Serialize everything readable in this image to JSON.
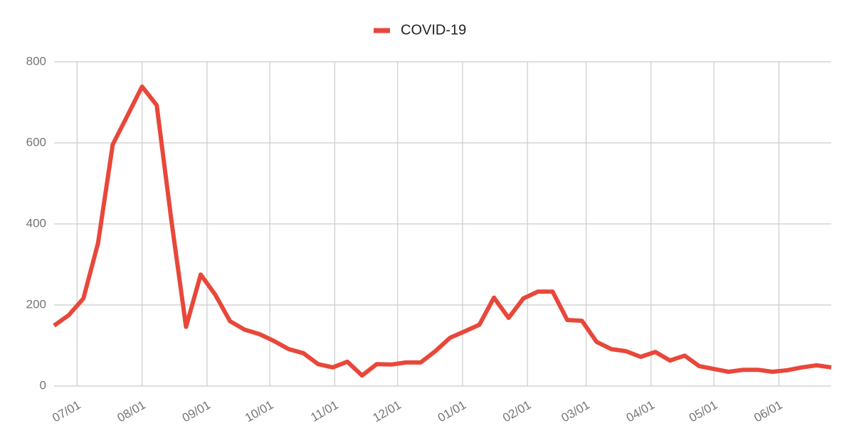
{
  "chart_data": {
    "type": "line",
    "x": [
      "06/20",
      "06/27",
      "07/04",
      "07/11",
      "07/18",
      "07/25",
      "08/01",
      "08/08",
      "08/15",
      "08/22",
      "08/29",
      "09/05",
      "09/12",
      "09/19",
      "09/26",
      "10/03",
      "10/10",
      "10/17",
      "10/24",
      "10/31",
      "11/07",
      "11/14",
      "11/21",
      "11/28",
      "12/05",
      "12/12",
      "12/19",
      "12/26",
      "01/02",
      "01/09",
      "01/16",
      "01/23",
      "01/30",
      "02/06",
      "02/13",
      "02/20",
      "02/27",
      "03/06",
      "03/13",
      "03/20",
      "03/27",
      "04/03",
      "04/10",
      "04/17",
      "04/24",
      "05/01",
      "05/08",
      "05/15",
      "05/22",
      "05/29",
      "06/05",
      "06/12",
      "06/19",
      "06/26"
    ],
    "series": [
      {
        "name": "COVID-19",
        "color": "#e8473a",
        "values": [
          149,
          175,
          216,
          353,
          596,
          667,
          739,
          693,
          409,
          146,
          275,
          225,
          160,
          139,
          128,
          111,
          91,
          81,
          54,
          46,
          60,
          26,
          54,
          53,
          58,
          58,
          86,
          119,
          135,
          151,
          218,
          168,
          216,
          233,
          233,
          163,
          161,
          109,
          91,
          86,
          72,
          84,
          63,
          75,
          49,
          42,
          35,
          40,
          40,
          35,
          39,
          46,
          51,
          46
        ]
      }
    ],
    "xlim": [
      "06/20",
      "06/26"
    ],
    "xticks": [
      "07/01",
      "08/01",
      "09/01",
      "10/01",
      "11/01",
      "12/01",
      "01/01",
      "02/01",
      "03/01",
      "04/01",
      "05/01",
      "06/01"
    ],
    "ylim": [
      0,
      800
    ],
    "yticks": [
      0,
      200,
      400,
      600,
      800
    ],
    "grid": true,
    "legend": "top"
  }
}
